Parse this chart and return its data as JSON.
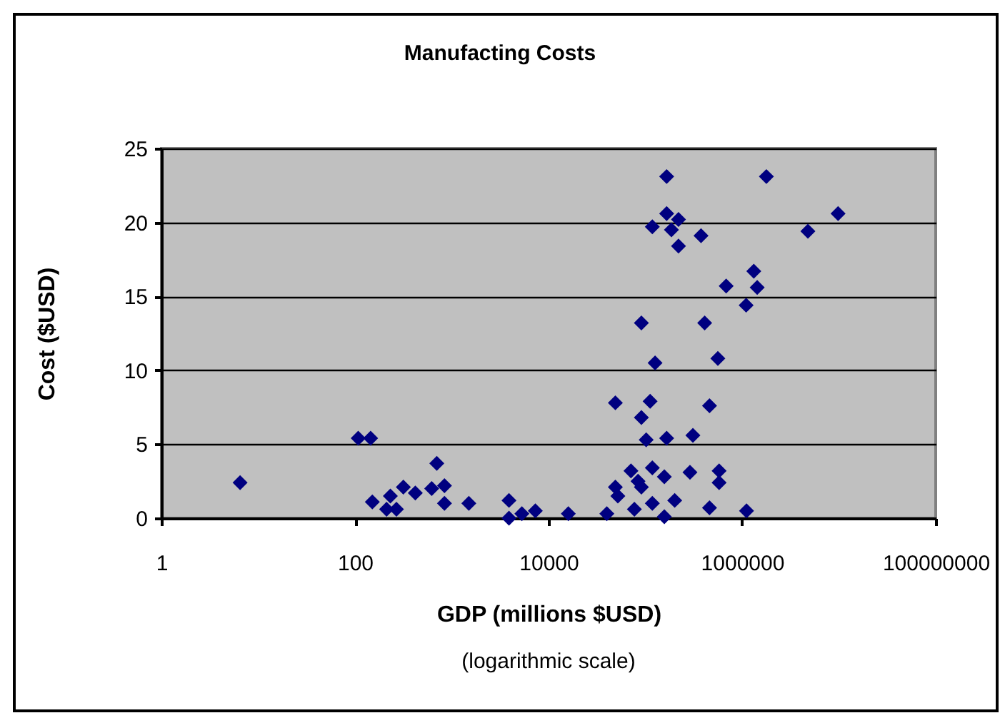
{
  "chart_data": {
    "type": "scatter",
    "title": "Manufacting Costs",
    "xlabel": "GDP (millions $USD)",
    "ylabel": "Cost ($USD)",
    "annotations": [
      "(logarithmic scale)"
    ],
    "x": [
      6.5,
      108,
      145,
      151,
      212,
      232,
      268,
      316,
      420,
      620,
      700,
      840,
      840,
      1500,
      3900,
      3900,
      5300,
      7300,
      16000,
      40000,
      49000,
      49000,
      52000,
      71000,
      77000,
      84000,
      91000,
      91000,
      91000,
      102000,
      112000,
      118000,
      118000,
      126000,
      166000,
      166000,
      118000,
      186000,
      220000,
      220000,
      157000,
      166000,
      157000,
      201000,
      289000,
      310000,
      376000,
      410000,
      460000,
      460000,
      561000,
      578000,
      578000,
      684000,
      1100000,
      1110000,
      1320000,
      1430000,
      1780000,
      4780000,
      9800000
    ],
    "series": [
      {
        "color": "#000080",
        "values": [
          2.4,
          5.4,
          5.4,
          1.1,
          0.6,
          1.5,
          0.6,
          2.1,
          1.7,
          2.0,
          3.7,
          2.2,
          1.0,
          1.0,
          1.2,
          0.0,
          0.3,
          0.5,
          0.3,
          0.3,
          7.8,
          2.1,
          1.5,
          3.2,
          0.6,
          2.5,
          2.1,
          13.2,
          6.8,
          5.3,
          7.9,
          3.4,
          1.0,
          10.5,
          23.1,
          20.6,
          19.7,
          19.5,
          20.2,
          18.4,
          2.8,
          5.4,
          0.1,
          1.2,
          3.1,
          5.6,
          19.1,
          13.2,
          7.6,
          0.7,
          10.8,
          3.2,
          2.4,
          15.7,
          14.4,
          0.5,
          16.7,
          15.6,
          23.1,
          19.4,
          20.6
        ]
      }
    ],
    "xlim": [
      1,
      100000000
    ],
    "xticks": [
      1,
      100,
      10000,
      1000000,
      100000000
    ],
    "ylim": [
      0,
      25
    ],
    "yticks": [
      0,
      5,
      10,
      15,
      20,
      25
    ],
    "log": "x",
    "grid": "y",
    "marker": "diamond"
  }
}
